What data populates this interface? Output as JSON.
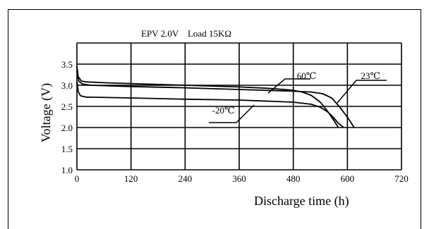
{
  "chart_data": {
    "type": "line",
    "title": "EPV 2.0V    Load 15KΩ",
    "xlabel": "Discharge time (h)",
    "ylabel": "Voltage (V)",
    "xlim": [
      0,
      720
    ],
    "ylim": [
      1.0,
      4.0
    ],
    "x_ticks": [
      0,
      120,
      240,
      360,
      480,
      600,
      720
    ],
    "x_tick_labels": [
      "0",
      "120",
      "240",
      "360",
      "480",
      "600",
      "720"
    ],
    "y_ticks": [
      1.0,
      1.5,
      2.0,
      2.5,
      3.0,
      3.5
    ],
    "y_tick_labels": [
      "1.0",
      "1.5",
      "2.0",
      "2.5",
      "3.0",
      "3.5"
    ],
    "grid": true,
    "series": [
      {
        "name": "60℃",
        "label_at": [
          488,
          3.15
        ],
        "points": [
          [
            0,
            3.45
          ],
          [
            3,
            3.2
          ],
          [
            10,
            3.1
          ],
          [
            20,
            3.08
          ],
          [
            60,
            3.06
          ],
          [
            120,
            3.04
          ],
          [
            240,
            3.0
          ],
          [
            360,
            2.96
          ],
          [
            420,
            2.93
          ],
          [
            460,
            2.9
          ],
          [
            480,
            2.88
          ],
          [
            500,
            2.84
          ],
          [
            520,
            2.76
          ],
          [
            540,
            2.6
          ],
          [
            555,
            2.4
          ],
          [
            568,
            2.2
          ],
          [
            580,
            2.0
          ]
        ]
      },
      {
        "name": "23℃",
        "label_at": [
          630,
          3.15
        ],
        "points": [
          [
            0,
            3.35
          ],
          [
            4,
            3.1
          ],
          [
            12,
            3.03
          ],
          [
            30,
            3.0
          ],
          [
            120,
            2.97
          ],
          [
            240,
            2.94
          ],
          [
            360,
            2.9
          ],
          [
            480,
            2.86
          ],
          [
            520,
            2.84
          ],
          [
            545,
            2.8
          ],
          [
            565,
            2.7
          ],
          [
            582,
            2.5
          ],
          [
            596,
            2.3
          ],
          [
            606,
            2.15
          ],
          [
            615,
            2.0
          ]
        ]
      },
      {
        "name": "-20℃",
        "label_at": [
          300,
          2.33
        ],
        "points": [
          [
            0,
            3.1
          ],
          [
            3,
            2.85
          ],
          [
            8,
            2.75
          ],
          [
            20,
            2.72
          ],
          [
            120,
            2.7
          ],
          [
            240,
            2.67
          ],
          [
            360,
            2.65
          ],
          [
            480,
            2.6
          ],
          [
            520,
            2.55
          ],
          [
            540,
            2.48
          ],
          [
            555,
            2.38
          ],
          [
            568,
            2.25
          ],
          [
            580,
            2.1
          ],
          [
            592,
            2.0
          ]
        ]
      }
    ]
  }
}
